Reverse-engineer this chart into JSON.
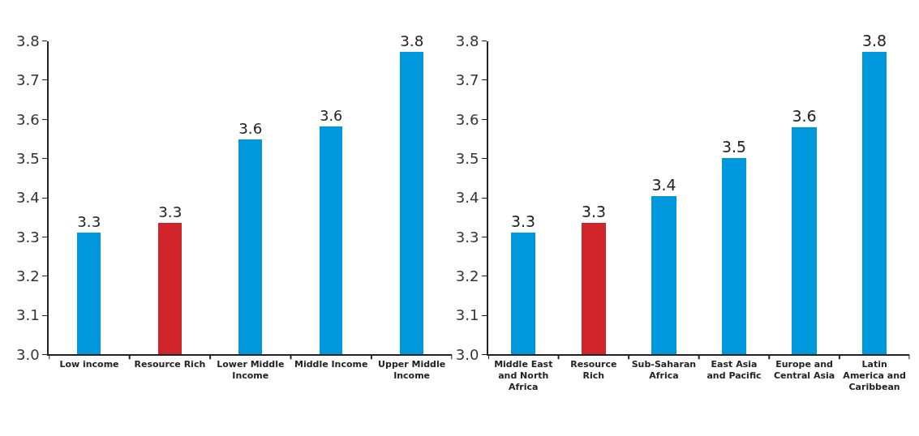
{
  "chart_data": [
    {
      "type": "bar",
      "categories": [
        "Low income",
        "Resource Rich",
        "Lower Middle Income",
        "Middle Income",
        "Upper Middle Income"
      ],
      "values": [
        3.311,
        3.337,
        3.55,
        3.582,
        3.774
      ],
      "colors": [
        "#0098dc",
        "#d0232a",
        "#0098dc",
        "#0098dc",
        "#0098dc"
      ],
      "value_labels": [
        "3.3",
        "3.3",
        "3.6",
        "3.6",
        "3.8"
      ],
      "ylim": [
        3.0,
        3.8
      ],
      "yticks": [
        {
          "value": 3.0,
          "label": "3.0"
        },
        3.1,
        3.2,
        3.3,
        3.4,
        3.5,
        3.6,
        3.7,
        3.8
      ]
    },
    {
      "type": "bar",
      "categories": [
        "Middle East and North Africa",
        "Resource Rich",
        "Sub-Saharan Africa",
        "East Asia and Pacific",
        "Europe and Central Asia",
        "Latin America and Caribbean"
      ],
      "values": [
        3.311,
        3.337,
        3.406,
        3.502,
        3.581,
        3.774
      ],
      "colors": [
        "#0098dc",
        "#d0232a",
        "#0098dc",
        "#0098dc",
        "#0098dc",
        "#0098dc"
      ],
      "value_labels": [
        "3.3",
        "3.3",
        "3.4",
        "3.5",
        "3.6",
        "3.8"
      ],
      "ylim": [
        3.0,
        3.8
      ],
      "yticks": [
        {
          "value": 3.0,
          "label": "3.0"
        },
        3.1,
        3.2,
        3.3,
        3.4,
        3.5,
        3.6,
        3.7,
        3.8
      ]
    }
  ]
}
